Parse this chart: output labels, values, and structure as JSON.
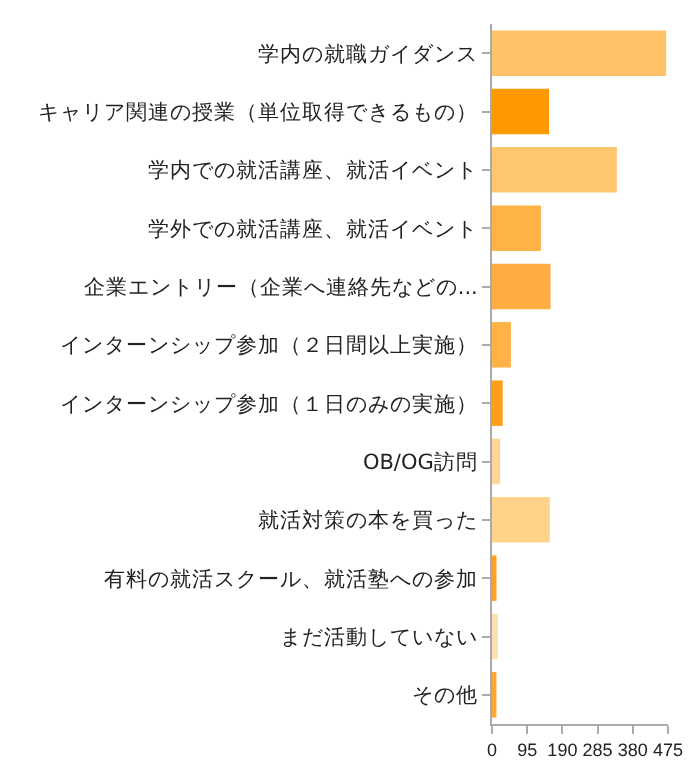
{
  "chart_data": {
    "type": "bar",
    "orientation": "horizontal",
    "categories": [
      "学内の就職ガイダンス",
      "キャリア関連の授業（単位取得できるもの）",
      "学内での就活講座、就活イベント",
      "学外での就活講座、就活イベント",
      "企業エントリー（企業へ連絡先などの...",
      "インターンシップ参加（２日間以上実施）",
      "インターンシップ参加（１日のみの実施）",
      "OB/OG訪問",
      "就活対策の本を買った",
      "有料の就活スクール、就活塾への参加",
      "まだ活動していない",
      "その他"
    ],
    "values": [
      470,
      154,
      337,
      132,
      158,
      51,
      29,
      22,
      156,
      12,
      16,
      12
    ],
    "colors": [
      "#ffc266",
      "#ff9900",
      "#ffc670",
      "#ffb347",
      "#ffad40",
      "#ffb347",
      "#ff9f1a",
      "#ffd699",
      "#ffd38a",
      "#ffa020",
      "#ffe0b0",
      "#ffa530"
    ],
    "xlim": [
      0,
      475
    ],
    "xticks": [
      0,
      95,
      190,
      285,
      380,
      475
    ],
    "grid": false
  }
}
